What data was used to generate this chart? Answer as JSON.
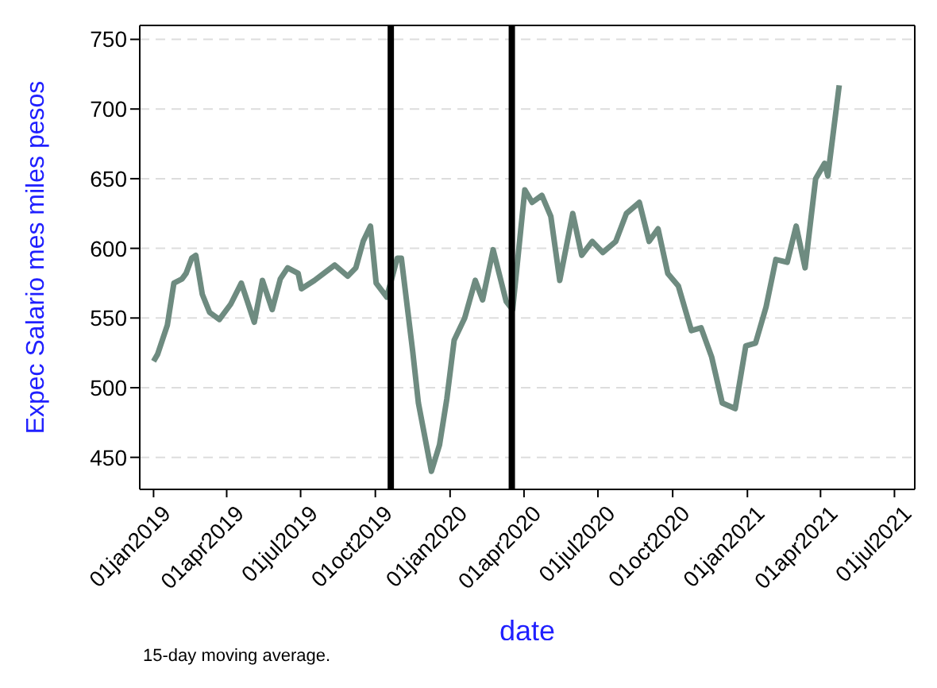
{
  "chart_data": {
    "type": "line",
    "xlabel": "date",
    "ylabel": "Expec Salario mes miles pesos",
    "annotations": [
      "15-day moving average."
    ],
    "x": [
      "2019-01-01",
      "2019-01-06",
      "2019-01-18",
      "2019-01-26",
      "2019-02-05",
      "2019-02-10",
      "2019-02-17",
      "2019-02-22",
      "2019-03-02",
      "2019-03-11",
      "2019-03-23",
      "2019-04-06",
      "2019-04-19",
      "2019-05-05",
      "2019-05-15",
      "2019-05-27",
      "2019-06-06",
      "2019-06-15",
      "2019-06-28",
      "2019-07-02",
      "2019-07-18",
      "2019-08-12",
      "2019-08-28",
      "2019-09-07",
      "2019-09-16",
      "2019-09-25",
      "2019-10-02",
      "2019-10-15",
      "2019-10-28",
      "2019-11-02",
      "2019-11-16",
      "2019-11-23",
      "2019-12-09",
      "2019-12-19",
      "2019-12-28",
      "2020-01-06",
      "2020-01-19",
      "2020-02-01",
      "2020-02-10",
      "2020-02-23",
      "2020-03-10",
      "2020-03-18",
      "2020-04-02",
      "2020-04-11",
      "2020-04-23",
      "2020-05-04",
      "2020-05-15",
      "2020-05-31",
      "2020-06-11",
      "2020-06-24",
      "2020-07-07",
      "2020-07-23",
      "2020-08-05",
      "2020-08-21",
      "2020-09-02",
      "2020-09-13",
      "2020-09-25",
      "2020-10-08",
      "2020-10-24",
      "2020-11-05",
      "2020-11-18",
      "2020-12-01",
      "2020-12-17",
      "2020-12-30",
      "2021-01-11",
      "2021-01-24",
      "2021-02-05",
      "2021-02-19",
      "2021-03-02",
      "2021-03-13",
      "2021-03-26",
      "2021-04-06",
      "2021-04-10",
      "2021-04-24"
    ],
    "series": [
      {
        "color": "#6e8b80",
        "values": [
          519,
          524,
          545,
          575,
          578,
          582,
          593,
          595,
          567,
          554,
          549,
          560,
          575,
          547,
          577,
          556,
          578,
          586,
          582,
          571,
          577,
          588,
          580,
          586,
          605,
          616,
          575,
          565,
          593,
          593,
          526,
          489,
          440,
          459,
          492,
          534,
          550,
          577,
          563,
          599,
          562,
          556,
          642,
          633,
          638,
          623,
          577,
          625,
          595,
          605,
          597,
          605,
          625,
          633,
          605,
          614,
          582,
          573,
          541,
          543,
          522,
          489,
          485,
          530,
          532,
          558,
          592,
          590,
          616,
          586,
          650,
          661,
          652,
          717
        ]
      }
    ],
    "xlim": [
      "2018-12-15",
      "2021-07-26"
    ],
    "xticks": [
      {
        "value": "2019-01-01",
        "label": "01jan2019"
      },
      {
        "value": "2019-04-01",
        "label": "01apr2019"
      },
      {
        "value": "2019-07-01",
        "label": "01jul2019"
      },
      {
        "value": "2019-10-01",
        "label": "01oct2019"
      },
      {
        "value": "2020-01-01",
        "label": "01jan2020"
      },
      {
        "value": "2020-04-01",
        "label": "01apr2020"
      },
      {
        "value": "2020-07-01",
        "label": "01jul2020"
      },
      {
        "value": "2020-10-01",
        "label": "01oct2020"
      },
      {
        "value": "2021-01-01",
        "label": "01jan2021"
      },
      {
        "value": "2021-04-01",
        "label": "01apr2021"
      },
      {
        "value": "2021-07-01",
        "label": "01jul2021"
      }
    ],
    "ylim": [
      427,
      760
    ],
    "yticks": [
      450,
      500,
      550,
      600,
      650,
      700,
      750
    ],
    "ref_lines": [
      {
        "axis": "x",
        "value": "2019-10-20",
        "color": "#000000"
      },
      {
        "axis": "x",
        "value": "2020-03-17",
        "color": "#000000"
      }
    ],
    "grid": "y",
    "legend": false,
    "marker": "none",
    "line_style": "solid"
  }
}
